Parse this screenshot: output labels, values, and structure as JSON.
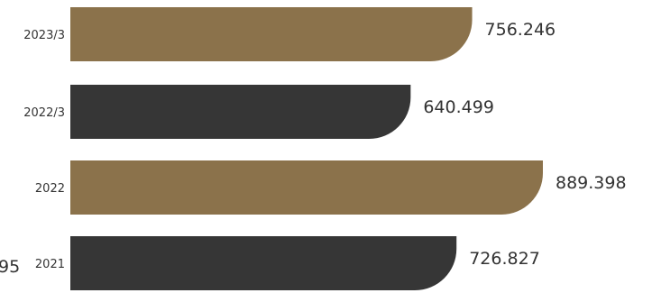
{
  "chart_data": {
    "type": "bar",
    "orientation": "horizontal",
    "categories": [
      "2023/3",
      "2022/3",
      "2022",
      "2021"
    ],
    "values": [
      756.246,
      640.499,
      889.398,
      726.827
    ],
    "value_labels": [
      "756.246",
      "640.499",
      "889.398",
      "726.827"
    ],
    "bar_colors": [
      "#8b724b",
      "#363636",
      "#8b724b",
      "#363636"
    ],
    "xlim": [
      0,
      889.398
    ],
    "grid": false,
    "partial_text": "95"
  }
}
